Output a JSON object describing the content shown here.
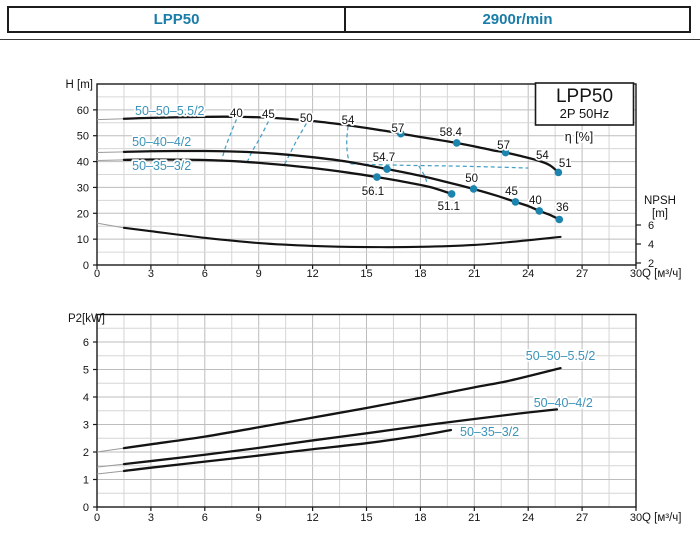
{
  "header": {
    "model": "LPP50",
    "speed": "2900r/min"
  },
  "colors": {
    "accent": "#1a7ca8",
    "label_blue": "#3b93ba",
    "dot": "#1d84ad",
    "iso": "#45a0c4",
    "curve": "#141414",
    "grid_minor": "#d6d6d6",
    "grid_major": "#bdbdbd",
    "frame": "#1a1a1a"
  },
  "chart_data": [
    {
      "type": "line",
      "title_box": {
        "line1": "LPP50",
        "line2": "2P  50Hz"
      },
      "x": {
        "label": "Q [м³/ч]",
        "min": 0,
        "max": 30,
        "ticks": [
          0,
          3,
          6,
          9,
          12,
          15,
          18,
          21,
          24,
          27,
          30
        ]
      },
      "y": {
        "label": "H [m]",
        "min": 0,
        "max": 70,
        "ticks": [
          0,
          10,
          20,
          30,
          40,
          50,
          60
        ]
      },
      "y2": {
        "label": "NPSH",
        "unit": "[m]",
        "ticks": [
          2,
          4,
          6
        ]
      },
      "eta_label": "η [%]",
      "series": [
        {
          "name": "50-50-5.5/2",
          "points": [
            [
              0,
              56.2
            ],
            [
              1.5,
              56.55
            ],
            [
              3,
              56.9
            ],
            [
              6,
              57.3
            ],
            [
              8,
              57.3
            ],
            [
              10,
              56.8
            ],
            [
              12,
              55.7
            ],
            [
              14,
              54.0
            ],
            [
              16,
              51.9
            ],
            [
              16.91,
              50.8
            ],
            [
              18,
              49.5
            ],
            [
              19,
              48.4
            ],
            [
              20.02,
              47.2
            ],
            [
              21,
              45.9
            ],
            [
              22,
              44.4
            ],
            [
              22.74,
              43.5
            ],
            [
              23.5,
              42.3
            ],
            [
              24.5,
              40.5
            ],
            [
              25.2,
              38.6
            ],
            [
              25.68,
              35.8
            ]
          ],
          "dots": [
            [
              16.91,
              50.8
            ],
            [
              20.02,
              47.2
            ],
            [
              22.74,
              43.5
            ],
            [
              25.68,
              35.8
            ]
          ],
          "label": {
            "text": "50–50–5.5/2",
            "q": 4.05,
            "v": 59.6
          }
        },
        {
          "name": "50-40-4/2",
          "points": [
            [
              0,
              43.5
            ],
            [
              1.5,
              43.75
            ],
            [
              3,
              44.0
            ],
            [
              6,
              44.1
            ],
            [
              8,
              43.8
            ],
            [
              10,
              43.0
            ],
            [
              12,
              41.7
            ],
            [
              14,
              39.9
            ],
            [
              16.14,
              37.1
            ],
            [
              18,
              34.5
            ],
            [
              19.5,
              32.0
            ],
            [
              20.96,
              29.4
            ],
            [
              22.2,
              26.9
            ],
            [
              23.29,
              24.4
            ],
            [
              24,
              22.8
            ],
            [
              24.62,
              20.9
            ],
            [
              25.2,
              19.4
            ],
            [
              25.73,
              17.6
            ]
          ],
          "dots": [
            [
              16.14,
              37.1
            ],
            [
              20.96,
              29.4
            ],
            [
              23.29,
              24.4
            ],
            [
              24.62,
              20.9
            ],
            [
              25.73,
              17.6
            ]
          ],
          "label": {
            "text": "50–40–4/2",
            "q": 3.6,
            "v": 47.6
          }
        },
        {
          "name": "50-35-3/2",
          "points": [
            [
              0,
              40.4
            ],
            [
              1.5,
              40.65
            ],
            [
              3,
              40.8
            ],
            [
              6,
              40.6
            ],
            [
              8,
              40.0
            ],
            [
              10,
              38.9
            ],
            [
              12,
              37.5
            ],
            [
              14,
              35.7
            ],
            [
              15.58,
              34.0
            ],
            [
              17,
              32.3
            ],
            [
              18.5,
              30.2
            ],
            [
              19.74,
              27.5
            ]
          ],
          "dots": [
            [
              15.58,
              34.0
            ],
            [
              19.74,
              27.5
            ]
          ],
          "label": {
            "text": "50–35–3/2",
            "q": 3.6,
            "v": 38.3
          }
        }
      ],
      "npsh": {
        "points": [
          [
            0,
            6.2
          ],
          [
            1.5,
            5.7
          ],
          [
            3,
            5.35
          ],
          [
            6,
            4.65
          ],
          [
            9,
            4.1
          ],
          [
            12,
            3.8
          ],
          [
            15,
            3.68
          ],
          [
            18,
            3.7
          ],
          [
            21,
            3.9
          ],
          [
            23.5,
            4.3
          ],
          [
            25.8,
            4.75
          ]
        ]
      },
      "iso_lines": [
        {
          "points": [
            [
              7.76,
              56.3
            ],
            [
              7.45,
              51.0
            ],
            [
              7.15,
              45.5
            ],
            [
              6.95,
              40.9
            ]
          ]
        },
        {
          "points": [
            [
              9.54,
              55.5
            ],
            [
              9.1,
              49.5
            ],
            [
              8.6,
              43.5
            ],
            [
              8.37,
              39.9
            ]
          ]
        },
        {
          "points": [
            [
              11.65,
              54.7
            ],
            [
              11.1,
              48.0
            ],
            [
              10.7,
              42.5
            ],
            [
              10.43,
              38.8
            ]
          ]
        },
        {
          "points": [
            [
              13.97,
              53.6
            ],
            [
              13.9,
              48.0
            ],
            [
              13.95,
              42.5
            ],
            [
              14.1,
              39.2
            ]
          ]
        },
        {
          "points": [
            [
              14.12,
              39.1
            ],
            [
              16.8,
              38.6
            ],
            [
              19.6,
              38.3
            ],
            [
              22.1,
              37.9
            ],
            [
              24.0,
              37.5
            ]
          ]
        },
        {
          "points": [
            [
              17.91,
              38.3
            ],
            [
              18.2,
              34.9
            ],
            [
              18.35,
              32.2
            ]
          ]
        }
      ],
      "eff_labels": [
        {
          "t": "40",
          "q": 7.76,
          "v": 58.8
        },
        {
          "t": "45",
          "q": 9.54,
          "v": 58.4
        },
        {
          "t": "50",
          "q": 11.65,
          "v": 56.9
        },
        {
          "t": "54",
          "q": 13.97,
          "v": 56.0
        },
        {
          "t": "57",
          "q": 16.75,
          "v": 53.0
        },
        {
          "t": "58.4",
          "q": 19.69,
          "v": 51.4
        },
        {
          "t": "57",
          "q": 22.63,
          "v": 46.4
        },
        {
          "t": "54",
          "q": 24.79,
          "v": 42.5
        },
        {
          "t": "51",
          "q": 26.06,
          "v": 39.4
        },
        {
          "t": "54.7",
          "q": 15.97,
          "v": 41.8
        },
        {
          "t": "50",
          "q": 20.85,
          "v": 33.6
        },
        {
          "t": "45",
          "q": 23.07,
          "v": 28.6
        },
        {
          "t": "40",
          "q": 24.4,
          "v": 25.1
        },
        {
          "t": "36",
          "q": 25.9,
          "v": 22.4
        },
        {
          "t": "56.1",
          "q": 15.36,
          "v": 28.6
        },
        {
          "t": "51.1",
          "q": 19.58,
          "v": 22.8
        }
      ]
    },
    {
      "type": "line",
      "x": {
        "label": "Q [м³/ч]",
        "min": 0,
        "max": 30,
        "ticks": [
          0,
          3,
          6,
          9,
          12,
          15,
          18,
          21,
          24,
          27,
          30
        ]
      },
      "y": {
        "label": "P2[kW]",
        "min": 0,
        "max": 7,
        "ticks": [
          0,
          1,
          2,
          3,
          4,
          5,
          6
        ]
      },
      "series": [
        {
          "name": "50-50-5.5/2",
          "points": [
            [
              0,
              2.0
            ],
            [
              1.5,
              2.14
            ],
            [
              3,
              2.28
            ],
            [
              6,
              2.56
            ],
            [
              9,
              2.9
            ],
            [
              12,
              3.25
            ],
            [
              15,
              3.6
            ],
            [
              18,
              3.97
            ],
            [
              21,
              4.35
            ],
            [
              23,
              4.6
            ],
            [
              25.8,
              5.05
            ]
          ],
          "label": {
            "text": "50–50–5.5/2",
            "q": 25.8,
            "v": 5.49
          }
        },
        {
          "name": "50-40-4/2",
          "points": [
            [
              0,
              1.45
            ],
            [
              1.5,
              1.56
            ],
            [
              3,
              1.67
            ],
            [
              6,
              1.9
            ],
            [
              9,
              2.15
            ],
            [
              12,
              2.42
            ],
            [
              15,
              2.68
            ],
            [
              18,
              2.95
            ],
            [
              21,
              3.2
            ],
            [
              23.5,
              3.4
            ],
            [
              25.6,
              3.55
            ]
          ],
          "label": {
            "text": "50–40–4/2",
            "q": 25.95,
            "v": 3.78
          }
        },
        {
          "name": "50-35-3/2",
          "points": [
            [
              0,
              1.2
            ],
            [
              1.5,
              1.31
            ],
            [
              3,
              1.43
            ],
            [
              6,
              1.65
            ],
            [
              9,
              1.87
            ],
            [
              12,
              2.1
            ],
            [
              15,
              2.32
            ],
            [
              17.5,
              2.55
            ],
            [
              19.7,
              2.8
            ]
          ],
          "label": {
            "text": "50–35–3/2",
            "q": 21.85,
            "v": 2.73
          }
        }
      ]
    }
  ]
}
